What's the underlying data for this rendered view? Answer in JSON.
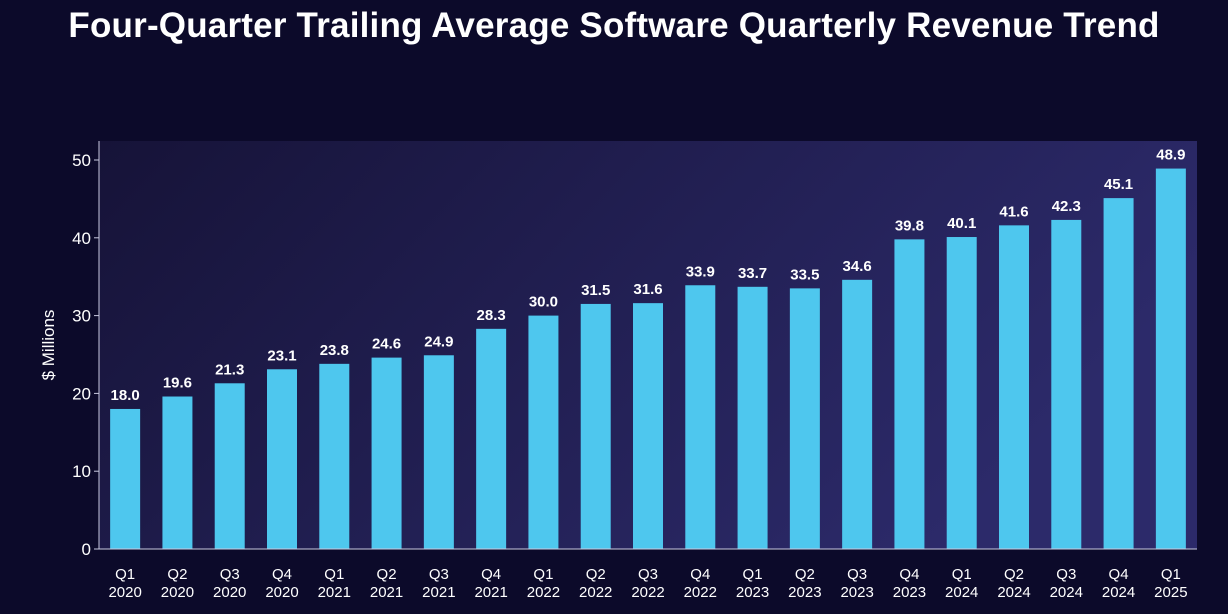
{
  "title": "Four-Quarter Trailing Average Software Quarterly Revenue Trend",
  "colors": {
    "background": "#0c0a2a",
    "plot_bg_dark": "#161338",
    "plot_bg_light": "#2c2a6a",
    "bar": "#4ec7ee",
    "axis": "#c9c9e0",
    "text": "#ffffff"
  },
  "chart_data": {
    "type": "bar",
    "title": "Four-Quarter Trailing Average Software Quarterly Revenue Trend",
    "xlabel": "",
    "ylabel": "$ Millions",
    "ylim": [
      0,
      52
    ],
    "yticks": [
      0,
      10,
      20,
      30,
      40,
      50
    ],
    "grid": false,
    "legend": "none",
    "categories": [
      [
        "Q1",
        "2020"
      ],
      [
        "Q2",
        "2020"
      ],
      [
        "Q3",
        "2020"
      ],
      [
        "Q4",
        "2020"
      ],
      [
        "Q1",
        "2021"
      ],
      [
        "Q2",
        "2021"
      ],
      [
        "Q3",
        "2021"
      ],
      [
        "Q4",
        "2021"
      ],
      [
        "Q1",
        "2022"
      ],
      [
        "Q2",
        "2022"
      ],
      [
        "Q3",
        "2022"
      ],
      [
        "Q4",
        "2022"
      ],
      [
        "Q1",
        "2023"
      ],
      [
        "Q2",
        "2023"
      ],
      [
        "Q3",
        "2023"
      ],
      [
        "Q4",
        "2023"
      ],
      [
        "Q1",
        "2024"
      ],
      [
        "Q2",
        "2024"
      ],
      [
        "Q3",
        "2024"
      ],
      [
        "Q4",
        "2024"
      ],
      [
        "Q1",
        "2025"
      ]
    ],
    "values": [
      18.0,
      19.6,
      21.3,
      23.1,
      23.8,
      24.6,
      24.9,
      28.3,
      30.0,
      31.5,
      31.6,
      33.9,
      33.7,
      33.5,
      34.6,
      39.8,
      40.1,
      41.6,
      42.3,
      45.1,
      48.9
    ],
    "value_labels": [
      "18.0",
      "19.6",
      "21.3",
      "23.1",
      "23.8",
      "24.6",
      "24.9",
      "28.3",
      "30.0",
      "31.5",
      "31.6",
      "33.9",
      "33.7",
      "33.5",
      "34.6",
      "39.8",
      "40.1",
      "41.6",
      "42.3",
      "45.1",
      "48.9"
    ]
  }
}
